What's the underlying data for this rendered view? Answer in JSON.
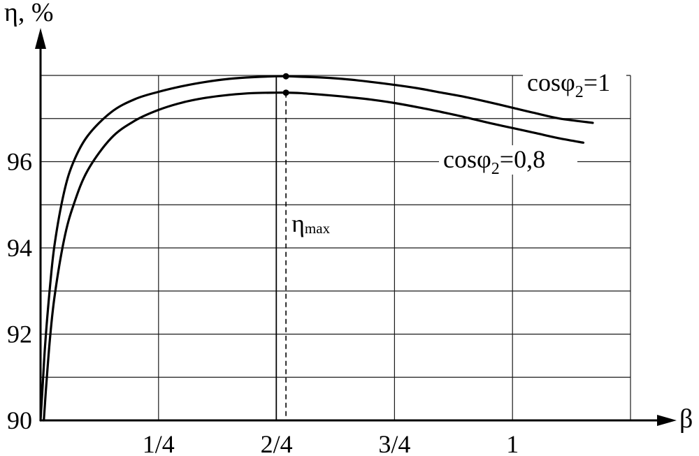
{
  "chart_data": {
    "type": "line",
    "title": "",
    "xlabel": "β",
    "ylabel": "η, %",
    "xlim": [
      0,
      1.25
    ],
    "ylim": [
      90,
      98
    ],
    "x_ticks": [
      {
        "value": 0.25,
        "label": "1/4"
      },
      {
        "value": 0.5,
        "label": "2/4"
      },
      {
        "value": 0.75,
        "label": "3/4"
      },
      {
        "value": 1.0,
        "label": "1"
      }
    ],
    "y_ticks": [
      {
        "value": 90,
        "label": "90"
      },
      {
        "value": 92,
        "label": "92"
      },
      {
        "value": 94,
        "label": "94"
      },
      {
        "value": 96,
        "label": "96"
      }
    ],
    "x_grid": [
      0.25,
      0.5,
      0.75,
      1.0,
      1.25
    ],
    "y_grid": [
      91,
      92,
      93,
      94,
      95,
      96,
      97,
      98
    ],
    "grid": true,
    "series": [
      {
        "name": "cosφ2=1",
        "label_main": "cosφ",
        "label_sub": "2",
        "label_tail": "=1",
        "x": [
          0.0,
          0.005,
          0.01,
          0.02,
          0.03,
          0.05,
          0.07,
          0.1,
          0.15,
          0.2,
          0.25,
          0.3,
          0.35,
          0.4,
          0.45,
          0.5,
          0.52,
          0.55,
          0.6,
          0.65,
          0.7,
          0.75,
          0.8,
          0.85,
          0.9,
          0.95,
          1.0,
          1.05,
          1.1,
          1.17
        ],
        "values": [
          90.0,
          90.9,
          91.8,
          93.1,
          94.1,
          95.3,
          96.0,
          96.6,
          97.15,
          97.45,
          97.62,
          97.75,
          97.85,
          97.92,
          97.96,
          97.98,
          97.98,
          97.97,
          97.95,
          97.91,
          97.85,
          97.78,
          97.7,
          97.6,
          97.5,
          97.38,
          97.25,
          97.12,
          97.0,
          96.9
        ]
      },
      {
        "name": "cosφ2=0,8",
        "label_main": "cosφ",
        "label_sub": "2",
        "label_tail": "=0,8",
        "x": [
          0.007,
          0.012,
          0.02,
          0.03,
          0.05,
          0.07,
          0.1,
          0.15,
          0.2,
          0.25,
          0.3,
          0.35,
          0.4,
          0.45,
          0.5,
          0.52,
          0.55,
          0.6,
          0.65,
          0.7,
          0.75,
          0.8,
          0.85,
          0.9,
          0.95,
          1.0,
          1.05,
          1.1,
          1.15
        ],
        "values": [
          90.0,
          90.8,
          91.9,
          92.9,
          94.2,
          95.0,
          95.8,
          96.55,
          96.95,
          97.2,
          97.37,
          97.48,
          97.55,
          97.59,
          97.6,
          97.6,
          97.59,
          97.55,
          97.5,
          97.44,
          97.36,
          97.26,
          97.15,
          97.03,
          96.9,
          96.78,
          96.66,
          96.54,
          96.44
        ]
      }
    ],
    "markers": [
      {
        "x": 0.52,
        "y": 97.98
      },
      {
        "x": 0.52,
        "y": 97.6
      }
    ],
    "annotations": {
      "eta_max": {
        "main": "η",
        "sub": "max",
        "x": 0.52
      }
    }
  }
}
